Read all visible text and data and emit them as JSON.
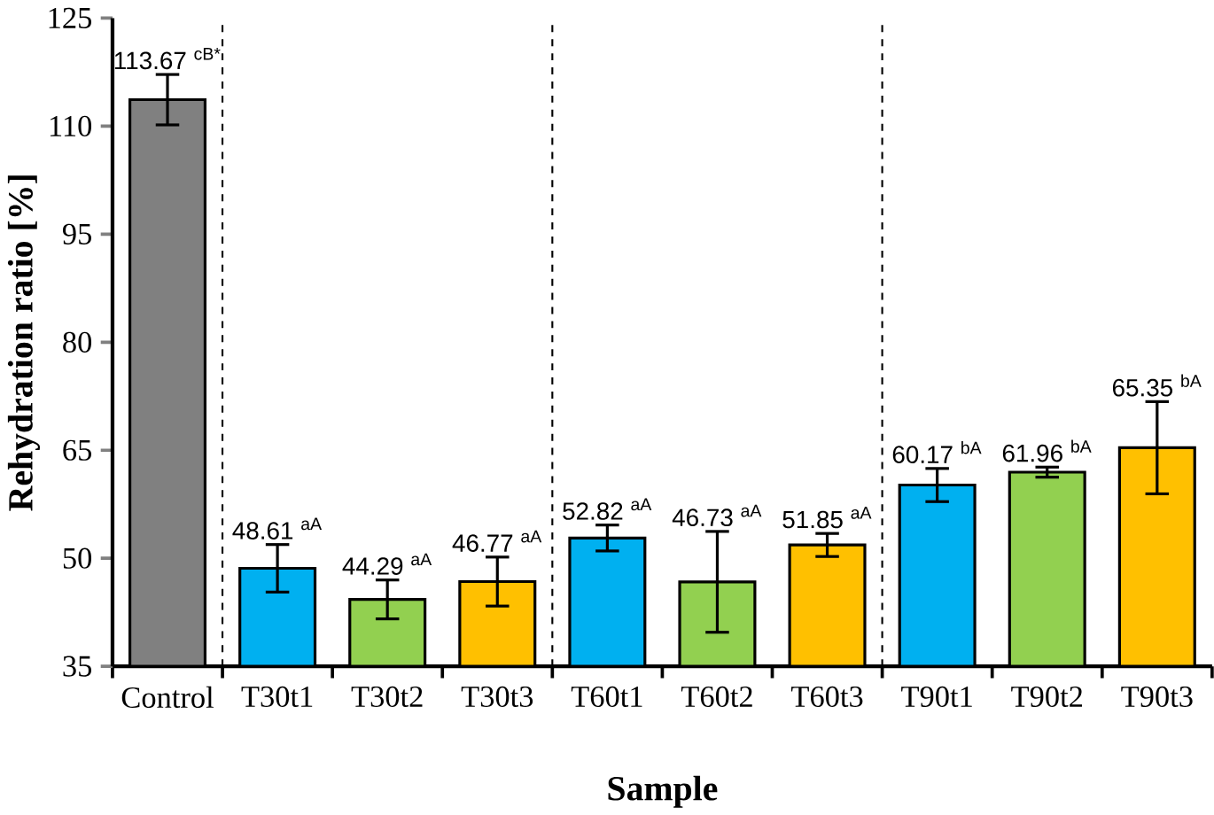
{
  "chart_data": {
    "type": "bar",
    "xlabel": "Sample",
    "ylabel": "Rehydration ratio [%]",
    "categories": [
      "Control",
      "T30t1",
      "T30t2",
      "T30t3",
      "T60t1",
      "T60t2",
      "T60t3",
      "T90t1",
      "T90t2",
      "T90t3"
    ],
    "values": [
      113.67,
      48.61,
      44.29,
      46.77,
      52.82,
      46.73,
      51.85,
      60.17,
      61.96,
      65.35
    ],
    "colors": [
      "#808080",
      "#00b0f0",
      "#92d050",
      "#ffc000",
      "#00b0f0",
      "#92d050",
      "#ffc000",
      "#00b0f0",
      "#92d050",
      "#ffc000"
    ],
    "errors": [
      3.5,
      3.3,
      2.7,
      3.4,
      1.8,
      7.0,
      1.6,
      2.3,
      0.7,
      6.4
    ],
    "value_labels": [
      "113.67 $^{cB*}$",
      "48.61 $^{aA}$",
      "44.29 $^{aA}$",
      "46.77 $^{aA}$",
      "52.82 $^{aA}$",
      "46.73 $^{aA}$",
      "51.85 $^{aA}$",
      "60.17 $^{bA}$",
      "61.96 $^{bA}$",
      "65.35 $^{bA}$"
    ],
    "ylim": [
      35,
      125
    ],
    "yticks": [
      35,
      50,
      65,
      80,
      95,
      110,
      125
    ],
    "grid": false
  }
}
